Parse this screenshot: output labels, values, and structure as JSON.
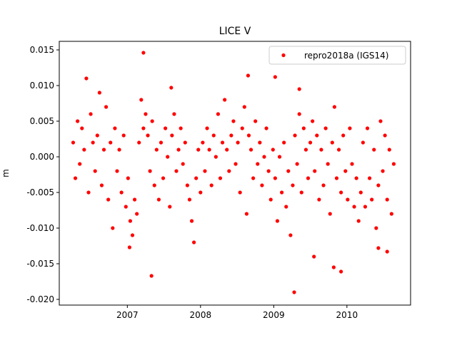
{
  "chart_data": {
    "type": "scatter",
    "title": "LICE V",
    "ylabel": "m",
    "series": [
      {
        "name": "repro2018a (IGS14)",
        "color": "#ff0000",
        "x": [
          2006.26,
          2006.29,
          2006.32,
          2006.35,
          2006.38,
          2006.41,
          2006.44,
          2006.47,
          2006.5,
          2006.53,
          2006.56,
          2006.59,
          2006.62,
          2006.65,
          2006.68,
          2006.71,
          2006.74,
          2006.77,
          2006.8,
          2006.83,
          2006.86,
          2006.89,
          2006.92,
          2006.95,
          2006.98,
          2007.01,
          2007.04,
          2007.07,
          2007.1,
          2007.13,
          2007.16,
          2007.19,
          2007.22,
          2007.25,
          2007.28,
          2007.31,
          2007.34,
          2007.37,
          2007.4,
          2007.43,
          2007.46,
          2007.49,
          2007.52,
          2007.55,
          2007.58,
          2007.61,
          2007.64,
          2007.67,
          2007.7,
          2007.73,
          2007.76,
          2007.79,
          2007.82,
          2007.85,
          2007.88,
          2007.91,
          2007.94,
          2007.97,
          2008.0,
          2008.03,
          2008.06,
          2008.09,
          2008.12,
          2008.15,
          2008.18,
          2008.21,
          2008.24,
          2008.27,
          2008.3,
          2008.33,
          2008.36,
          2008.39,
          2008.42,
          2008.45,
          2008.48,
          2008.51,
          2008.54,
          2008.57,
          2008.6,
          2008.63,
          2008.66,
          2008.69,
          2008.72,
          2008.75,
          2008.78,
          2008.81,
          2008.84,
          2008.87,
          2008.9,
          2008.93,
          2008.96,
          2008.99,
          2009.02,
          2009.05,
          2009.08,
          2009.11,
          2009.14,
          2009.17,
          2009.2,
          2009.23,
          2009.26,
          2009.29,
          2009.32,
          2009.35,
          2009.38,
          2009.41,
          2009.44,
          2009.47,
          2009.5,
          2009.53,
          2009.56,
          2009.59,
          2009.62,
          2009.65,
          2009.68,
          2009.71,
          2009.74,
          2009.77,
          2009.8,
          2009.83,
          2009.86,
          2009.89,
          2009.92,
          2009.95,
          2009.98,
          2010.01,
          2010.04,
          2010.07,
          2010.1,
          2010.13,
          2010.16,
          2010.19,
          2010.22,
          2010.25,
          2010.28,
          2010.31,
          2010.34,
          2010.37,
          2010.4,
          2010.43,
          2010.46,
          2010.49,
          2010.52,
          2010.55,
          2010.58,
          2010.61,
          2010.64,
          2007.22,
          2007.33,
          2009.28,
          2009.55,
          2009.82,
          2009.92,
          2010.43,
          2010.55,
          2008.65,
          2009.02,
          2007.6,
          2007.03,
          2009.35
        ],
        "values": [
          0.002,
          -0.003,
          0.005,
          -0.001,
          0.004,
          0.001,
          0.011,
          -0.005,
          0.006,
          0.002,
          -0.002,
          0.003,
          0.009,
          -0.004,
          0.001,
          0.007,
          -0.006,
          0.002,
          -0.01,
          0.004,
          -0.002,
          0.001,
          -0.005,
          0.003,
          -0.007,
          -0.003,
          -0.009,
          -0.011,
          -0.006,
          -0.008,
          0.002,
          0.008,
          0.004,
          0.006,
          0.003,
          -0.002,
          0.005,
          -0.004,
          0.001,
          -0.006,
          0.002,
          -0.003,
          0.004,
          0.0,
          -0.007,
          0.003,
          0.006,
          -0.002,
          0.001,
          0.004,
          -0.001,
          0.002,
          -0.004,
          -0.006,
          -0.009,
          -0.012,
          -0.003,
          0.001,
          -0.005,
          0.002,
          -0.002,
          0.004,
          0.001,
          -0.004,
          0.003,
          0.0,
          0.006,
          -0.003,
          0.002,
          0.008,
          0.001,
          -0.002,
          0.003,
          0.005,
          -0.001,
          0.002,
          -0.005,
          0.004,
          0.007,
          -0.008,
          0.003,
          0.001,
          -0.003,
          0.005,
          -0.001,
          0.002,
          -0.004,
          0.0,
          0.004,
          -0.002,
          -0.006,
          0.001,
          -0.003,
          -0.009,
          0.0,
          -0.005,
          0.002,
          -0.007,
          -0.002,
          -0.011,
          -0.004,
          0.003,
          -0.001,
          0.006,
          -0.005,
          0.004,
          0.001,
          -0.003,
          0.002,
          0.005,
          -0.002,
          0.003,
          -0.006,
          0.001,
          -0.004,
          0.004,
          -0.001,
          -0.008,
          0.002,
          0.007,
          -0.003,
          0.001,
          -0.005,
          0.003,
          -0.002,
          -0.006,
          0.004,
          -0.001,
          -0.007,
          -0.003,
          -0.009,
          -0.005,
          0.002,
          -0.007,
          0.004,
          -0.003,
          -0.006,
          0.001,
          -0.01,
          -0.004,
          0.005,
          -0.002,
          0.003,
          -0.006,
          0.001,
          -0.008,
          -0.001,
          0.0146,
          -0.0167,
          -0.019,
          -0.014,
          -0.0155,
          -0.0161,
          -0.0128,
          -0.0133,
          0.0114,
          0.0112,
          0.0097,
          -0.0127,
          0.0095
        ]
      }
    ],
    "xlim": [
      2006.07,
      2010.87
    ],
    "xticks": [
      2007,
      2008,
      2009,
      2010
    ],
    "ylim": [
      -0.0208,
      0.0162
    ],
    "yticks": [
      {
        "value": -0.02,
        "label": "-0.020"
      },
      -0.015,
      {
        "value": -0.01,
        "label": "-0.010"
      },
      -0.005,
      {
        "value": 0,
        "label": "0.000"
      },
      0.005,
      {
        "value": 0.01,
        "label": "0.010"
      },
      0.015
    ],
    "legend": "upper right"
  }
}
